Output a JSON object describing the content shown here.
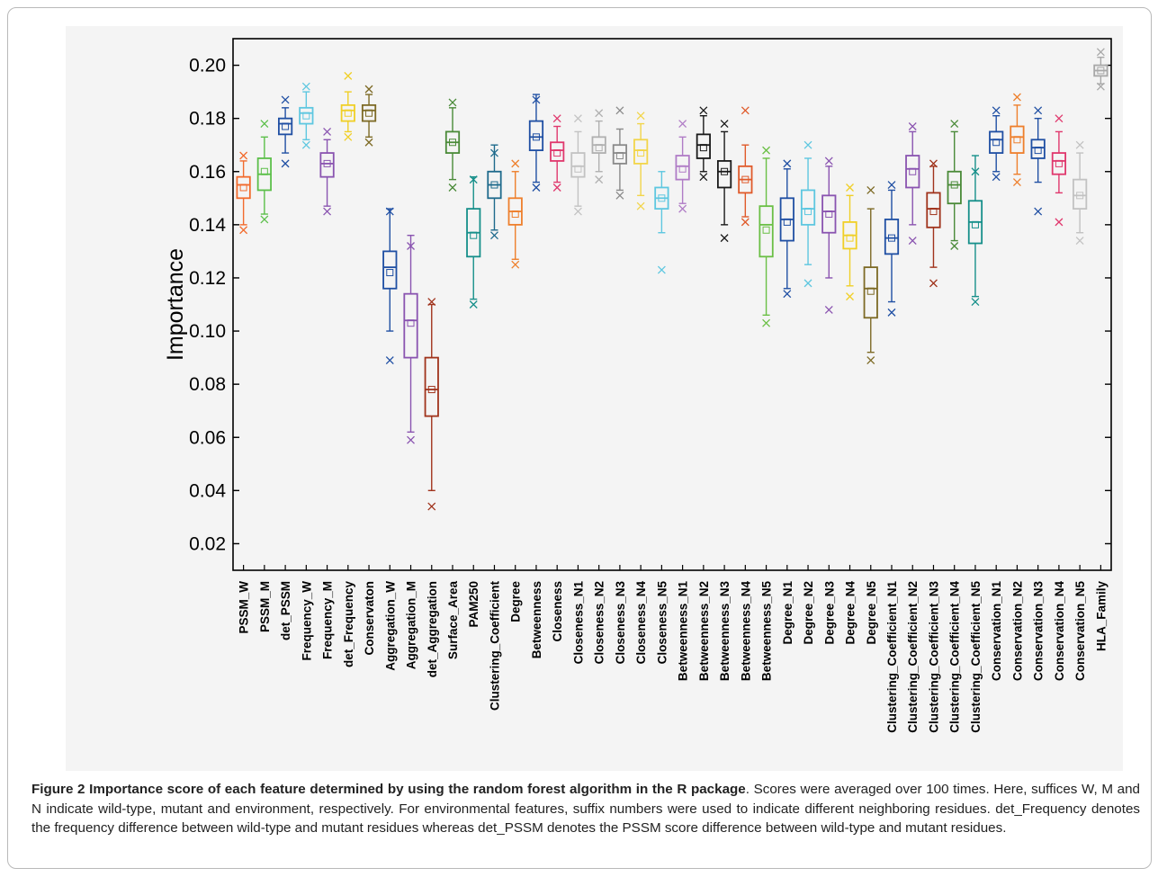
{
  "figure": {
    "caption_label": "Figure 2",
    "caption_title": "Importance score of each feature determined by using the random forest algorithm in the R package",
    "caption_text": ". Scores were averaged over 100 times. Here, suffices W, M and N indicate wild-type, mutant and environment, respectively. For environmental features, suffix numbers were used to indicate different neighboring residues. det_Frequency denotes the frequency difference between wild-type and mutant residues whereas det_PSSM denotes the PSSM score difference between wild-type and mutant residues."
  },
  "chart_data": {
    "type": "box",
    "title": "",
    "xlabel": "",
    "ylabel": "Importance",
    "ylim": [
      0.01,
      0.21
    ],
    "yticks": [
      0.02,
      0.04,
      0.06,
      0.08,
      0.1,
      0.12,
      0.14,
      0.16,
      0.18,
      0.2
    ],
    "ytick_labels": [
      "0.02",
      "0.04",
      "0.06",
      "0.08",
      "0.10",
      "0.12",
      "0.14",
      "0.16",
      "0.18",
      "0.20"
    ],
    "grid": false,
    "legend": "none",
    "series": [
      {
        "label": "PSSM_W",
        "color": "#f26b2d",
        "whisker_low": 0.14,
        "q1": 0.15,
        "median": 0.155,
        "q3": 0.158,
        "whisker_high": 0.164,
        "mean": 0.154,
        "outliers": [
          0.138,
          0.166
        ]
      },
      {
        "label": "PSSM_M",
        "color": "#5cbf4a",
        "whisker_low": 0.144,
        "q1": 0.153,
        "median": 0.159,
        "q3": 0.165,
        "whisker_high": 0.173,
        "mean": 0.16,
        "outliers": [
          0.142,
          0.178
        ]
      },
      {
        "label": "det_PSSM",
        "color": "#1f4fa3",
        "whisker_low": 0.167,
        "q1": 0.174,
        "median": 0.178,
        "q3": 0.18,
        "whisker_high": 0.184,
        "mean": 0.177,
        "outliers": [
          0.163,
          0.187
        ]
      },
      {
        "label": "Frequency_W",
        "color": "#5ec7e0",
        "whisker_low": 0.172,
        "q1": 0.178,
        "median": 0.182,
        "q3": 0.184,
        "whisker_high": 0.19,
        "mean": 0.181,
        "outliers": [
          0.17,
          0.192
        ]
      },
      {
        "label": "Frequency_M",
        "color": "#8a54b0",
        "whisker_low": 0.147,
        "q1": 0.158,
        "median": 0.163,
        "q3": 0.167,
        "whisker_high": 0.172,
        "mean": 0.163,
        "outliers": [
          0.145,
          0.175
        ]
      },
      {
        "label": "det_Frequency",
        "color": "#f0cf26",
        "whisker_low": 0.175,
        "q1": 0.179,
        "median": 0.183,
        "q3": 0.185,
        "whisker_high": 0.19,
        "mean": 0.182,
        "outliers": [
          0.173,
          0.196
        ]
      },
      {
        "label": "Conservaton",
        "color": "#7d6a25",
        "whisker_low": 0.173,
        "q1": 0.179,
        "median": 0.183,
        "q3": 0.185,
        "whisker_high": 0.189,
        "mean": 0.182,
        "outliers": [
          0.171,
          0.191
        ]
      },
      {
        "label": "Aggregation_W",
        "color": "#1f4fa3",
        "whisker_low": 0.1,
        "q1": 0.116,
        "median": 0.124,
        "q3": 0.13,
        "whisker_high": 0.146,
        "mean": 0.122,
        "outliers": [
          0.089,
          0.145
        ]
      },
      {
        "label": "Aggregation_M",
        "color": "#8a54b0",
        "whisker_low": 0.062,
        "q1": 0.09,
        "median": 0.104,
        "q3": 0.114,
        "whisker_high": 0.136,
        "mean": 0.103,
        "outliers": [
          0.059,
          0.132
        ]
      },
      {
        "label": "det_Aggregation",
        "color": "#a0331c",
        "whisker_low": 0.04,
        "q1": 0.068,
        "median": 0.078,
        "q3": 0.09,
        "whisker_high": 0.11,
        "mean": 0.078,
        "outliers": [
          0.034,
          0.111
        ]
      },
      {
        "label": "Surface_Area",
        "color": "#4a8a38",
        "whisker_low": 0.157,
        "q1": 0.167,
        "median": 0.171,
        "q3": 0.175,
        "whisker_high": 0.184,
        "mean": 0.171,
        "outliers": [
          0.154,
          0.186
        ]
      },
      {
        "label": "PAM250",
        "color": "#168f8a",
        "whisker_low": 0.112,
        "q1": 0.128,
        "median": 0.137,
        "q3": 0.146,
        "whisker_high": 0.158,
        "mean": 0.136,
        "outliers": [
          0.11,
          0.157
        ]
      },
      {
        "label": "Clustering_Coefficient",
        "color": "#1e6a8c",
        "whisker_low": 0.138,
        "q1": 0.15,
        "median": 0.155,
        "q3": 0.16,
        "whisker_high": 0.17,
        "mean": 0.155,
        "outliers": [
          0.136,
          0.167
        ]
      },
      {
        "label": "Degree",
        "color": "#ee7f2c",
        "whisker_low": 0.127,
        "q1": 0.14,
        "median": 0.145,
        "q3": 0.15,
        "whisker_high": 0.16,
        "mean": 0.144,
        "outliers": [
          0.125,
          0.163
        ]
      },
      {
        "label": "Betweenness",
        "color": "#1f4fa3",
        "whisker_low": 0.156,
        "q1": 0.168,
        "median": 0.173,
        "q3": 0.179,
        "whisker_high": 0.189,
        "mean": 0.173,
        "outliers": [
          0.154,
          0.187
        ]
      },
      {
        "label": "Closeness",
        "color": "#e0386d",
        "whisker_low": 0.156,
        "q1": 0.164,
        "median": 0.168,
        "q3": 0.171,
        "whisker_high": 0.177,
        "mean": 0.167,
        "outliers": [
          0.154,
          0.18
        ]
      },
      {
        "label": "Closeness_N1",
        "color": "#c2c2c2",
        "whisker_low": 0.147,
        "q1": 0.158,
        "median": 0.162,
        "q3": 0.167,
        "whisker_high": 0.175,
        "mean": 0.161,
        "outliers": [
          0.145,
          0.18
        ]
      },
      {
        "label": "Closeness_N2",
        "color": "#b0b0b0",
        "whisker_low": 0.16,
        "q1": 0.167,
        "median": 0.17,
        "q3": 0.173,
        "whisker_high": 0.179,
        "mean": 0.169,
        "outliers": [
          0.157,
          0.182
        ]
      },
      {
        "label": "Closeness_N3",
        "color": "#8a8a8a",
        "whisker_low": 0.153,
        "q1": 0.163,
        "median": 0.167,
        "q3": 0.17,
        "whisker_high": 0.176,
        "mean": 0.166,
        "outliers": [
          0.151,
          0.183
        ]
      },
      {
        "label": "Closeness_N4",
        "color": "#f2d54a",
        "whisker_low": 0.151,
        "q1": 0.163,
        "median": 0.168,
        "q3": 0.172,
        "whisker_high": 0.178,
        "mean": 0.167,
        "outliers": [
          0.147,
          0.181
        ]
      },
      {
        "label": "Closeness_N5",
        "color": "#5ec7e0",
        "whisker_low": 0.137,
        "q1": 0.146,
        "median": 0.15,
        "q3": 0.154,
        "whisker_high": 0.16,
        "mean": 0.15,
        "outliers": [
          0.123
        ]
      },
      {
        "label": "Betweenness_N1",
        "color": "#b07cc6",
        "whisker_low": 0.148,
        "q1": 0.157,
        "median": 0.162,
        "q3": 0.166,
        "whisker_high": 0.173,
        "mean": 0.161,
        "outliers": [
          0.146,
          0.178
        ]
      },
      {
        "label": "Betweenness_N2",
        "color": "#1a1a1a",
        "whisker_low": 0.16,
        "q1": 0.165,
        "median": 0.17,
        "q3": 0.174,
        "whisker_high": 0.181,
        "mean": 0.169,
        "outliers": [
          0.158,
          0.183
        ]
      },
      {
        "label": "Betweenness_N3",
        "color": "#1a1a1a",
        "whisker_low": 0.14,
        "q1": 0.154,
        "median": 0.16,
        "q3": 0.164,
        "whisker_high": 0.175,
        "mean": 0.16,
        "outliers": [
          0.135,
          0.178
        ]
      },
      {
        "label": "Betweenness_N4",
        "color": "#e05a2a",
        "whisker_low": 0.143,
        "q1": 0.152,
        "median": 0.157,
        "q3": 0.162,
        "whisker_high": 0.17,
        "mean": 0.157,
        "outliers": [
          0.141,
          0.183
        ]
      },
      {
        "label": "Betweenness_N5",
        "color": "#6abf45",
        "whisker_low": 0.106,
        "q1": 0.128,
        "median": 0.14,
        "q3": 0.147,
        "whisker_high": 0.165,
        "mean": 0.138,
        "outliers": [
          0.103,
          0.168
        ]
      },
      {
        "label": "Degree_N1",
        "color": "#1f4fa3",
        "whisker_low": 0.116,
        "q1": 0.134,
        "median": 0.142,
        "q3": 0.15,
        "whisker_high": 0.161,
        "mean": 0.141,
        "outliers": [
          0.114,
          0.163
        ]
      },
      {
        "label": "Degree_N2",
        "color": "#5ec7e0",
        "whisker_low": 0.125,
        "q1": 0.14,
        "median": 0.146,
        "q3": 0.153,
        "whisker_high": 0.165,
        "mean": 0.145,
        "outliers": [
          0.118,
          0.17
        ]
      },
      {
        "label": "Degree_N3",
        "color": "#8a54b0",
        "whisker_low": 0.12,
        "q1": 0.137,
        "median": 0.145,
        "q3": 0.151,
        "whisker_high": 0.162,
        "mean": 0.144,
        "outliers": [
          0.108,
          0.164
        ]
      },
      {
        "label": "Degree_N4",
        "color": "#f0cf26",
        "whisker_low": 0.117,
        "q1": 0.131,
        "median": 0.136,
        "q3": 0.141,
        "whisker_high": 0.151,
        "mean": 0.135,
        "outliers": [
          0.113,
          0.154
        ]
      },
      {
        "label": "Degree_N5",
        "color": "#7d6a25",
        "whisker_low": 0.092,
        "q1": 0.105,
        "median": 0.116,
        "q3": 0.124,
        "whisker_high": 0.146,
        "mean": 0.115,
        "outliers": [
          0.089,
          0.153
        ]
      },
      {
        "label": "Clustering_Coefficient_N1",
        "color": "#1f4fa3",
        "whisker_low": 0.111,
        "q1": 0.129,
        "median": 0.135,
        "q3": 0.142,
        "whisker_high": 0.153,
        "mean": 0.135,
        "outliers": [
          0.107,
          0.155
        ]
      },
      {
        "label": "Clustering_Coefficient_N2",
        "color": "#8a54b0",
        "whisker_low": 0.14,
        "q1": 0.154,
        "median": 0.161,
        "q3": 0.166,
        "whisker_high": 0.175,
        "mean": 0.16,
        "outliers": [
          0.134,
          0.177
        ]
      },
      {
        "label": "Clustering_Coefficient_N3",
        "color": "#a0331c",
        "whisker_low": 0.124,
        "q1": 0.139,
        "median": 0.146,
        "q3": 0.152,
        "whisker_high": 0.162,
        "mean": 0.145,
        "outliers": [
          0.118,
          0.163
        ]
      },
      {
        "label": "Clustering_Coefficient_N4",
        "color": "#4a8a38",
        "whisker_low": 0.134,
        "q1": 0.148,
        "median": 0.155,
        "q3": 0.16,
        "whisker_high": 0.175,
        "mean": 0.155,
        "outliers": [
          0.132,
          0.178
        ]
      },
      {
        "label": "Clustering_Coefficient_N5",
        "color": "#168f8a",
        "whisker_low": 0.113,
        "q1": 0.133,
        "median": 0.141,
        "q3": 0.149,
        "whisker_high": 0.166,
        "mean": 0.14,
        "outliers": [
          0.111,
          0.16
        ]
      },
      {
        "label": "Conservation_N1",
        "color": "#1f4fa3",
        "whisker_low": 0.16,
        "q1": 0.167,
        "median": 0.172,
        "q3": 0.175,
        "whisker_high": 0.181,
        "mean": 0.171,
        "outliers": [
          0.158,
          0.183
        ]
      },
      {
        "label": "Conservation_N2",
        "color": "#ee7f2c",
        "whisker_low": 0.159,
        "q1": 0.167,
        "median": 0.173,
        "q3": 0.177,
        "whisker_high": 0.185,
        "mean": 0.172,
        "outliers": [
          0.156,
          0.188
        ]
      },
      {
        "label": "Conservation_N3",
        "color": "#1f4fa3",
        "whisker_low": 0.156,
        "q1": 0.165,
        "median": 0.169,
        "q3": 0.172,
        "whisker_high": 0.18,
        "mean": 0.168,
        "outliers": [
          0.145,
          0.183
        ]
      },
      {
        "label": "Conservation_N4",
        "color": "#e0386d",
        "whisker_low": 0.152,
        "q1": 0.159,
        "median": 0.164,
        "q3": 0.167,
        "whisker_high": 0.175,
        "mean": 0.163,
        "outliers": [
          0.141,
          0.18
        ]
      },
      {
        "label": "Conservation_N5",
        "color": "#c2c2c2",
        "whisker_low": 0.137,
        "q1": 0.146,
        "median": 0.151,
        "q3": 0.157,
        "whisker_high": 0.167,
        "mean": 0.151,
        "outliers": [
          0.134,
          0.17
        ]
      },
      {
        "label": "HLA_Family",
        "color": "#a8a8a8",
        "whisker_low": 0.193,
        "q1": 0.196,
        "median": 0.198,
        "q3": 0.2,
        "whisker_high": 0.203,
        "mean": 0.198,
        "outliers": [
          0.192,
          0.205
        ]
      }
    ]
  }
}
